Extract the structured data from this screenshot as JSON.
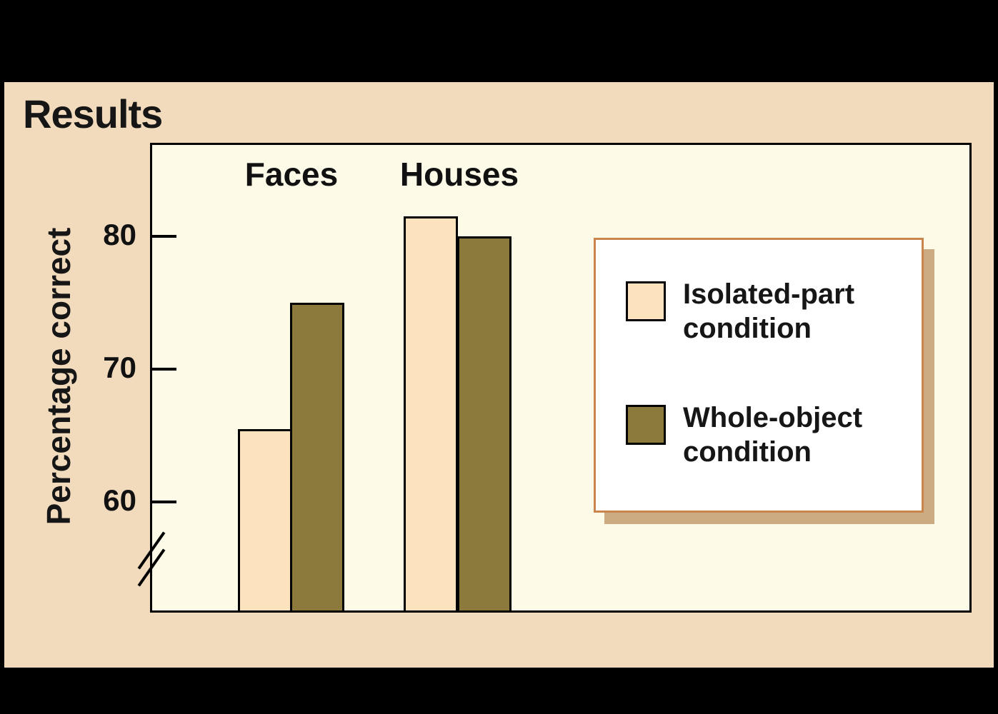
{
  "page": {
    "title": "Results"
  },
  "chart_data": {
    "type": "bar",
    "title": "Results",
    "ylabel": "Percentage correct",
    "categories": [
      "Faces",
      "Houses"
    ],
    "series": [
      {
        "name": "Isolated-part condition",
        "values": [
          65.5,
          81.5
        ],
        "color": "#fce2bd"
      },
      {
        "name": "Whole-object condition",
        "values": [
          75,
          80
        ],
        "color": "#8c7a3d"
      }
    ],
    "y_ticks": [
      80,
      70,
      60
    ],
    "ylim": [
      51.8,
      86.9
    ],
    "axis_break": true,
    "grid": false,
    "legend_position": "right-inside"
  },
  "colors": {
    "frame": "#000000",
    "panel_background": "#f2dbbd",
    "plot_background": "#fdfae8",
    "isolated_part_fill": "#fce2bd",
    "whole_object_fill": "#8c7a3d",
    "legend_border": "#c9854c",
    "legend_shadow": "#cdab82",
    "axis": "#000000"
  }
}
